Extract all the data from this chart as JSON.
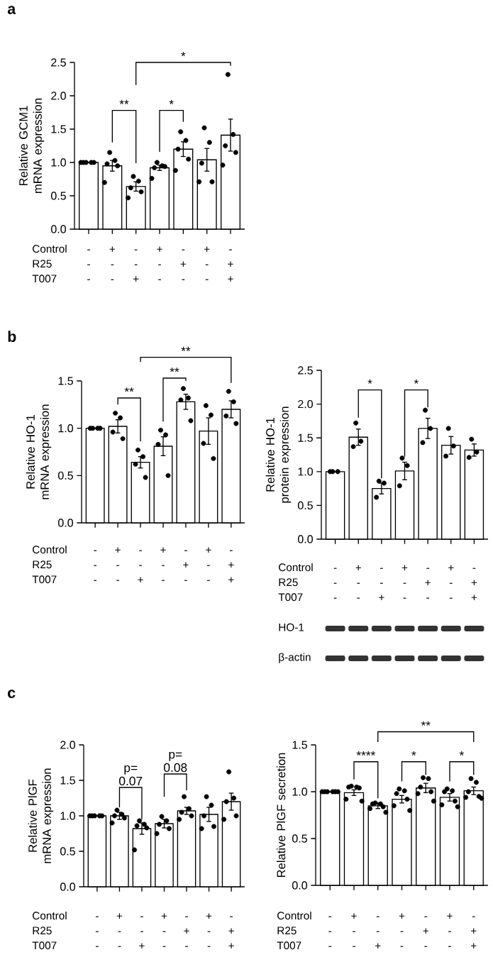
{
  "chart_data": [
    {
      "type": "bar",
      "title": "a",
      "ylabel": "Relative GCM1 mRNA expression",
      "categories": [
        "- - -",
        "+ - -",
        "- - +",
        "+ - -",
        "- + -",
        "+ - -",
        "- + +"
      ],
      "ylim": [
        0,
        2.5
      ],
      "yticks": [
        {
          "value": 0,
          "label": "0.0"
        },
        {
          "value": 0.5,
          "label": "0.5"
        },
        {
          "value": 1,
          "label": "1.0"
        },
        {
          "value": 1.5,
          "label": "1.5"
        },
        {
          "value": 2,
          "label": "2.0"
        },
        {
          "value": 2.5,
          "label": "2.5"
        }
      ],
      "annotations": [
        "Control",
        "R25",
        "T007",
        "**",
        "*",
        "*"
      ],
      "series": [
        {
          "type": "bar",
          "color": "#ffffff",
          "values": [
            1.0,
            0.95,
            0.64,
            0.92,
            1.2,
            1.04,
            1.41
          ],
          "errors": [
            null,
            0.08,
            0.07,
            0.04,
            0.11,
            0.17,
            0.24
          ]
        },
        {
          "type": "scatter",
          "color": "#000000",
          "marker": "circle",
          "values": [
            1,
            1.15,
            0.79,
            1.0,
            1.46,
            1.52,
            2.32
          ]
        },
        {
          "type": "scatter",
          "color": "#000000",
          "marker": "circle",
          "values": [
            1,
            1.03,
            0.72,
            0.95,
            1.33,
            1.3,
            1.42
          ]
        },
        {
          "type": "scatter",
          "color": "#000000",
          "marker": "circle",
          "values": [
            1,
            0.98,
            0.62,
            0.92,
            1.2,
            0.99,
            1.25
          ]
        },
        {
          "type": "scatter",
          "color": "#000000",
          "marker": "circle",
          "values": [
            1,
            0.95,
            0.56,
            0.94,
            1.05,
            0.71,
            1.15
          ]
        },
        {
          "type": "scatter",
          "color": "#000000",
          "marker": "circle",
          "values": [
            1,
            0.7,
            0.47,
            0.76,
            0.88,
            0.71,
            0.96
          ]
        }
      ]
    },
    {
      "type": "bar",
      "title": "b",
      "ylabel": "Relative HO-1 mRNA expression",
      "categories": [
        "- - -",
        "+ - -",
        "- - +",
        "+ - -",
        "- + -",
        "+ - -",
        "- + +"
      ],
      "ylim": [
        0,
        1.5
      ],
      "yticks": [
        {
          "value": 0,
          "label": "0.0"
        },
        {
          "value": 0.5,
          "label": "0.5"
        },
        {
          "value": 1,
          "label": "1.0"
        },
        {
          "value": 1.5,
          "label": "1.5"
        }
      ],
      "annotations": [
        "Control",
        "R25",
        "T007",
        "**",
        "**",
        "**"
      ],
      "series": [
        {
          "type": "bar",
          "color": "#ffffff",
          "values": [
            1.0,
            1.02,
            0.64,
            0.81,
            1.28,
            0.97,
            1.2
          ],
          "errors": [
            null,
            0.07,
            0.06,
            0.1,
            0.08,
            0.14,
            0.09
          ]
        },
        {
          "type": "scatter",
          "color": "#000000",
          "marker": "circle",
          "values": [
            1,
            1.16,
            0.77,
            0.98,
            1.42,
            1.24,
            1.39
          ]
        },
        {
          "type": "scatter",
          "color": "#000000",
          "marker": "circle",
          "values": [
            1,
            1.11,
            0.7,
            0.93,
            1.32,
            1.14,
            1.28
          ]
        },
        {
          "type": "scatter",
          "color": "#000000",
          "marker": "circle",
          "values": [
            1,
            0.96,
            0.62,
            0.83,
            1.3,
            0.84,
            1.13
          ]
        },
        {
          "type": "scatter",
          "color": "#000000",
          "marker": "circle",
          "values": [
            1,
            0.89,
            0.48,
            0.5,
            1.08,
            0.68,
            1.05
          ]
        }
      ]
    },
    {
      "type": "bar",
      "ylabel": "Relative HO-1 protein expression",
      "categories": [
        "- - -",
        "+ - -",
        "- - +",
        "+ - -",
        "- + -",
        "+ - -",
        "- + +"
      ],
      "ylim": [
        0,
        2.5
      ],
      "yticks": [
        {
          "value": 0,
          "label": "0.0"
        },
        {
          "value": 0.5,
          "label": "0.5"
        },
        {
          "value": 1,
          "label": "1.0"
        },
        {
          "value": 1.5,
          "label": "1.5"
        },
        {
          "value": 2,
          "label": "2.0"
        },
        {
          "value": 2.5,
          "label": "2.5"
        }
      ],
      "annotations": [
        "Control",
        "R25",
        "T007",
        "*",
        "*",
        "HO-1",
        "β-actin"
      ],
      "series": [
        {
          "type": "bar",
          "color": "#ffffff",
          "values": [
            1.0,
            1.51,
            0.75,
            1.01,
            1.64,
            1.39,
            1.32
          ],
          "errors": [
            null,
            0.12,
            0.08,
            0.13,
            0.15,
            0.13,
            0.09
          ]
        },
        {
          "type": "scatter",
          "color": "#000000",
          "marker": "circle",
          "values": [
            1,
            1.72,
            0.86,
            1.2,
            1.91,
            1.64,
            1.48
          ]
        },
        {
          "type": "scatter",
          "color": "#000000",
          "marker": "circle",
          "values": [
            1,
            1.45,
            0.83,
            1.09,
            1.64,
            1.38,
            1.29
          ]
        },
        {
          "type": "scatter",
          "color": "#000000",
          "marker": "circle",
          "values": [
            1,
            1.37,
            0.62,
            0.79,
            1.43,
            1.23,
            1.21
          ]
        }
      ]
    },
    {
      "type": "bar",
      "title": "c",
      "ylabel": "Relative PlGF mRNA expression",
      "categories": [
        "- - -",
        "+ - -",
        "- - +",
        "+ - -",
        "- + -",
        "+ - -",
        "- + +"
      ],
      "ylim": [
        0,
        2
      ],
      "yticks": [
        {
          "value": 0,
          "label": "0.0"
        },
        {
          "value": 0.5,
          "label": "0.5"
        },
        {
          "value": 1,
          "label": "1.0"
        },
        {
          "value": 1.5,
          "label": "1.5"
        },
        {
          "value": 2,
          "label": "2.0"
        }
      ],
      "annotations": [
        "Control",
        "R25",
        "T007",
        "p= 0.07",
        "p= 0.08"
      ],
      "series": [
        {
          "type": "bar",
          "color": "#ffffff",
          "values": [
            1.0,
            1.0,
            0.82,
            0.89,
            1.07,
            1.02,
            1.2
          ],
          "errors": [
            null,
            0.05,
            0.08,
            0.06,
            0.05,
            0.1,
            0.12
          ]
        },
        {
          "type": "scatter",
          "color": "#000000",
          "marker": "circle",
          "values": [
            1,
            1.08,
            0.93,
            0.99,
            1.27,
            1.27,
            1.62
          ]
        },
        {
          "type": "scatter",
          "color": "#000000",
          "marker": "circle",
          "values": [
            1,
            1.02,
            0.88,
            0.93,
            1.1,
            1.15,
            1.25
          ]
        },
        {
          "type": "scatter",
          "color": "#000000",
          "marker": "circle",
          "values": [
            1,
            1.0,
            0.86,
            0.88,
            1.05,
            1.0,
            1.2
          ]
        },
        {
          "type": "scatter",
          "color": "#000000",
          "marker": "circle",
          "values": [
            1,
            0.97,
            0.83,
            0.82,
            1.0,
            0.85,
            1.0
          ]
        },
        {
          "type": "scatter",
          "color": "#000000",
          "marker": "circle",
          "values": [
            1,
            0.9,
            0.52,
            0.75,
            0.95,
            0.82,
            0.95
          ]
        }
      ]
    },
    {
      "type": "bar",
      "ylabel": "Relative PlGF secretion",
      "categories": [
        "- - -",
        "+ - -",
        "- - +",
        "+ - -",
        "- + -",
        "+ - -",
        "- + +"
      ],
      "ylim": [
        0,
        1.5
      ],
      "yticks": [
        {
          "value": 0,
          "label": "0.0"
        },
        {
          "value": 0.5,
          "label": "0.5"
        },
        {
          "value": 1,
          "label": "1.0"
        },
        {
          "value": 1.5,
          "label": "1.5"
        }
      ],
      "annotations": [
        "Control",
        "R25",
        "T007",
        "****",
        "*",
        "*",
        "**"
      ],
      "series": [
        {
          "type": "bar",
          "color": "#ffffff",
          "values": [
            1.0,
            0.99,
            0.85,
            0.92,
            1.04,
            0.94,
            1.01
          ],
          "errors": [
            null,
            0.03,
            0.03,
            0.04,
            0.05,
            0.04,
            0.04
          ]
        },
        {
          "type": "scatter",
          "color": "#000000",
          "marker": "circle",
          "values": [
            1,
            1.06,
            0.88,
            1.03,
            1.15,
            1.03,
            1.14
          ]
        },
        {
          "type": "scatter",
          "color": "#000000",
          "marker": "circle",
          "values": [
            1,
            1.05,
            0.87,
            1.01,
            1.14,
            1.01,
            1.1
          ]
        },
        {
          "type": "scatter",
          "color": "#000000",
          "marker": "circle",
          "values": [
            1,
            1.05,
            0.87,
            0.98,
            1.05,
            1.0,
            1.0
          ]
        },
        {
          "type": "scatter",
          "color": "#000000",
          "marker": "circle",
          "values": [
            1,
            1.04,
            0.84,
            0.92,
            1.0,
            0.9,
            0.95
          ]
        },
        {
          "type": "scatter",
          "color": "#000000",
          "marker": "circle",
          "values": [
            1,
            0.92,
            0.82,
            0.85,
            0.98,
            0.86,
            0.94
          ]
        },
        {
          "type": "scatter",
          "color": "#000000",
          "marker": "circle",
          "values": [
            1,
            0.9,
            0.78,
            0.8,
            0.9,
            0.84,
            0.93
          ]
        }
      ]
    }
  ]
}
